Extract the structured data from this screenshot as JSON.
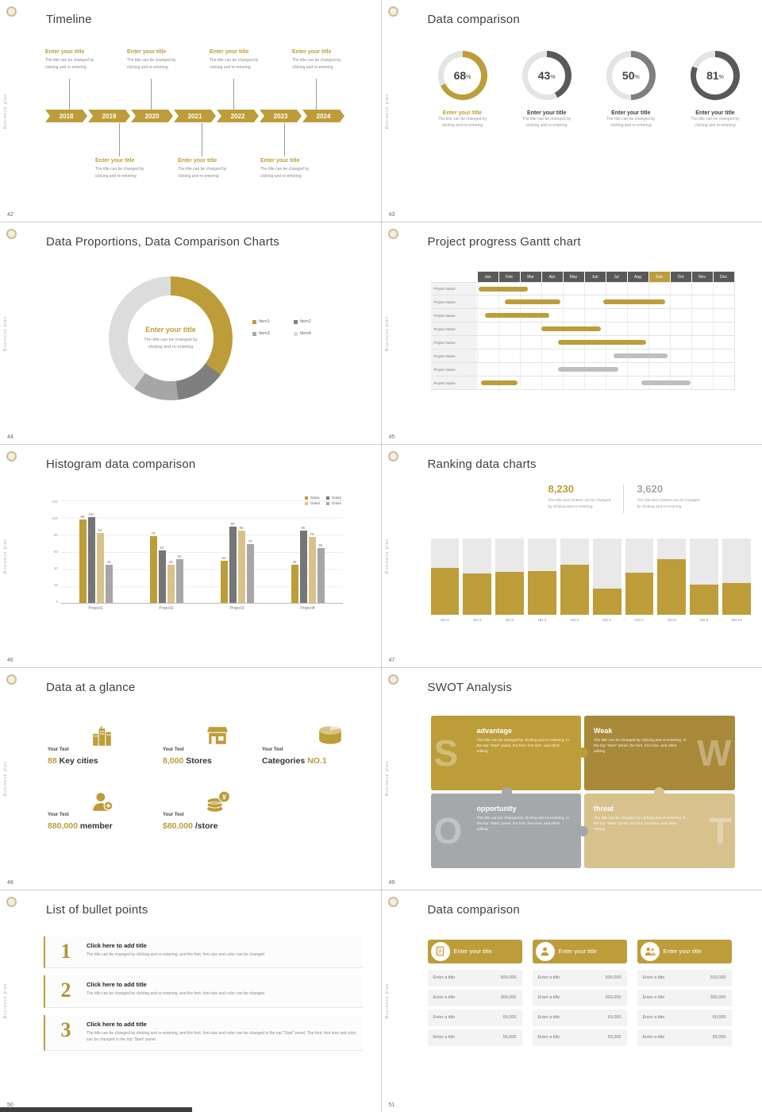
{
  "page": {
    "sidebar_text": "Business plan",
    "accent_color": "#BD9D39"
  },
  "shared": {
    "entry_title": "Enter your title",
    "entry_desc_line1": "The title can be changed by",
    "entry_desc_line2": "clicking and re-entering",
    "percent_sign": "%"
  },
  "slides": {
    "timeline": {
      "page_num": "42",
      "title": "Timeline",
      "years": [
        "2018",
        "2019",
        "2020",
        "2021",
        "2022",
        "2023",
        "2024"
      ]
    },
    "donuts": {
      "page_num": "43",
      "title": "Data comparison",
      "chart_data": {
        "type": "donut-progress",
        "track_color": "#E4E4E4",
        "items": [
          {
            "pct": 68,
            "color": "#BD9D39",
            "label": "Enter your title",
            "accent": true
          },
          {
            "pct": 43,
            "color": "#595959",
            "label": "Enter your title",
            "accent": false
          },
          {
            "pct": 50,
            "color": "#7F7F7F",
            "label": "Enter your title",
            "accent": false
          },
          {
            "pct": 81,
            "color": "#595959",
            "label": "Enter your title",
            "accent": false
          }
        ]
      }
    },
    "proportions": {
      "page_num": "44",
      "title": "Data Proportions, Data Comparison Charts",
      "center_title": "Enter your title",
      "chart_data": {
        "type": "pie",
        "segments": [
          {
            "label": "Item1",
            "value": 35,
            "color": "#BD9D39"
          },
          {
            "label": "Item2",
            "value": 13,
            "color": "#7F7F7F"
          },
          {
            "label": "Item3",
            "value": 12,
            "color": "#A6A6A6"
          },
          {
            "label": "Item4",
            "value": 40,
            "color": "#DCDCDC"
          }
        ]
      }
    },
    "gantt": {
      "page_num": "45",
      "title": "Project progress Gantt chart",
      "row_label": "Project Name",
      "chart_data": {
        "type": "gantt",
        "months": [
          "Jan",
          "Feb",
          "Mar",
          "Apr",
          "May",
          "Jun",
          "Jul",
          "Aug",
          "Sep",
          "Oct",
          "Nov",
          "Dec"
        ],
        "highlight_month": "Sep",
        "bar_colors": {
          "gold": "#BD9D39",
          "gray": "#BFBFBF"
        },
        "rows": [
          {
            "bars": [
              {
                "start": 0.1,
                "len": 2.3,
                "color": "gold"
              }
            ]
          },
          {
            "bars": [
              {
                "start": 1.3,
                "len": 2.6,
                "color": "gold"
              },
              {
                "start": 5.9,
                "len": 2.9,
                "color": "gold"
              }
            ]
          },
          {
            "bars": [
              {
                "start": 0.4,
                "len": 3.0,
                "color": "gold"
              }
            ]
          },
          {
            "bars": [
              {
                "start": 3.0,
                "len": 2.8,
                "color": "gold"
              }
            ]
          },
          {
            "bars": [
              {
                "start": 3.8,
                "len": 4.1,
                "color": "gold"
              }
            ]
          },
          {
            "bars": [
              {
                "start": 6.4,
                "len": 2.5,
                "color": "gray"
              }
            ]
          },
          {
            "bars": [
              {
                "start": 3.8,
                "len": 2.8,
                "color": "gray"
              }
            ]
          },
          {
            "bars": [
              {
                "start": 0.2,
                "len": 1.7,
                "color": "gold"
              },
              {
                "start": 7.7,
                "len": 2.3,
                "color": "gray"
              }
            ]
          }
        ]
      }
    },
    "histogram": {
      "page_num": "46",
      "title": "Histogram data comparison",
      "chart_data": {
        "type": "bar",
        "categories": [
          "Project1",
          "Project2",
          "Project3",
          "Project4"
        ],
        "series": [
          {
            "name": "Data1",
            "color": "#BD9D39",
            "values": [
              99,
              79,
              50,
              45
            ]
          },
          {
            "name": "Data2",
            "color": "#767676",
            "values": [
              102,
              62,
              90,
              86
            ]
          },
          {
            "name": "Data3",
            "color": "#D9C28A",
            "values": [
              83,
              45,
              86,
              78
            ]
          },
          {
            "name": "Data4",
            "color": "#A6A6A6",
            "values": [
              45,
              52,
              70,
              65
            ]
          }
        ],
        "ylim": [
          0,
          120
        ],
        "ystep": 20
      }
    },
    "ranking": {
      "page_num": "47",
      "title": "Ranking data charts",
      "stat1": {
        "value": "8,230",
        "desc_line1": "The title and content can be changed",
        "desc_line2": "by clicking and re-entering"
      },
      "stat2": {
        "value": "3,620",
        "desc_line1": "The title and content can be changed",
        "desc_line2": "by clicking and re-entering"
      },
      "chart_data": {
        "type": "bar",
        "categories": [
          "NO.1",
          "NO.2",
          "NO.3",
          "NO.4",
          "NO.5",
          "NO.6",
          "NO.7",
          "NO.8",
          "NO.9",
          "NO.10"
        ],
        "values": [
          62,
          55,
          57,
          58,
          66,
          35,
          56,
          73,
          40,
          42
        ],
        "ymax": 100
      }
    },
    "glance": {
      "page_num": "48",
      "title": "Data at a glance",
      "label": "Your Text",
      "items": [
        {
          "prefix": "",
          "num": "88",
          "suffix": " Key cities",
          "icon": "city-icon"
        },
        {
          "prefix": "",
          "num": "8,000",
          "suffix": " Stores",
          "icon": "store-icon"
        },
        {
          "prefix": "Categories ",
          "num": "NO.1",
          "suffix": "",
          "icon": "cheese-icon"
        },
        {
          "prefix": "",
          "num": "880,000",
          "suffix": " member",
          "icon": "member-icon"
        },
        {
          "prefix": "",
          "num": "$80,000",
          "suffix": " /store",
          "icon": "coins-icon"
        }
      ]
    },
    "swot": {
      "page_num": "49",
      "title": "SWOT Analysis",
      "desc": "The title can be changed by clicking and re-entering. In the top \"Start\" panel, the font, font size, and other editing",
      "quads": [
        {
          "letter": "S",
          "title": "advantage",
          "color": "#BD9D39"
        },
        {
          "letter": "W",
          "title": "Weak",
          "color": "#A8893A"
        },
        {
          "letter": "O",
          "title": "opportunity",
          "color": "#A5A7AA"
        },
        {
          "letter": "T",
          "title": "threat",
          "color": "#D7C28E"
        }
      ]
    },
    "bullets": {
      "page_num": "50",
      "title": "List of bullet points",
      "items": [
        {
          "num": "1",
          "title": "Click here to add title",
          "desc": "The title can be changed by clicking and re-entering, and the font, font size and color can be changed"
        },
        {
          "num": "2",
          "title": "Click here to add title",
          "desc": "The title can be changed by clicking and re-entering, and the font, font size and color can be changed"
        },
        {
          "num": "3",
          "title": "Click here to add title",
          "desc": "The title can be changed by clicking and re-entering, and the font, font size and color can be changed in the top \"Start\" panel. The font, font size and color can be changed in the top \"Start\" panel."
        }
      ]
    },
    "tables": {
      "page_num": "51",
      "title": "Data comparison",
      "header_title": "Enter your title",
      "cards": [
        {
          "icon": "document-icon"
        },
        {
          "icon": "person-icon"
        },
        {
          "icon": "people-icon"
        }
      ],
      "rows": [
        {
          "label": "Enter a title",
          "value": "500,000"
        },
        {
          "label": "Enter a title",
          "value": "300,000"
        },
        {
          "label": "Enter a title",
          "value": "60,000"
        },
        {
          "label": "Enter a title",
          "value": "55,000"
        }
      ]
    }
  }
}
